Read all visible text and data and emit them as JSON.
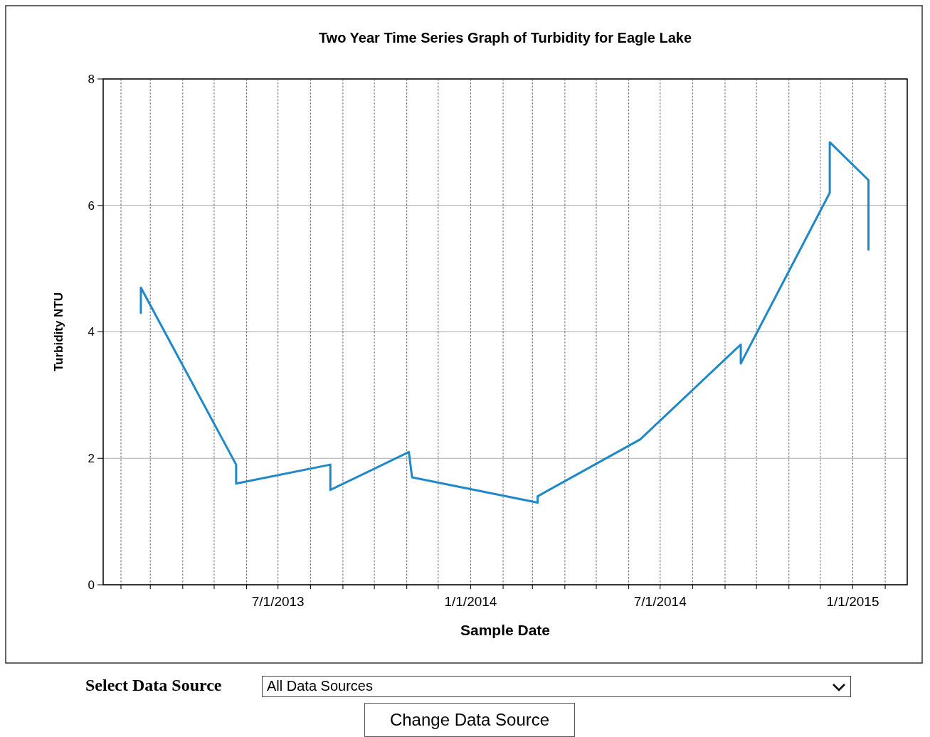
{
  "chart_data": {
    "type": "line",
    "title": "Two Year Time Series Graph of Turbidity for Eagle Lake",
    "xlabel": "Sample Date",
    "ylabel": "Turbidity NTU",
    "x": [
      "2013-02-20",
      "2013-02-20",
      "2013-05-22",
      "2013-05-22",
      "2013-08-20",
      "2013-08-20",
      "2013-11-03",
      "2013-11-06",
      "2014-03-06",
      "2014-03-06",
      "2014-06-12",
      "2014-09-16",
      "2014-09-16",
      "2014-12-10",
      "2014-12-10",
      "2015-01-16",
      "2015-01-16"
    ],
    "series": [
      {
        "color": "#1e88c8",
        "values": [
          4.3,
          4.7,
          1.9,
          1.6,
          1.9,
          1.5,
          2.1,
          1.7,
          1.3,
          1.4,
          2.3,
          3.8,
          3.5,
          6.2,
          7.0,
          6.4,
          5.3
        ]
      }
    ],
    "xlim": [
      "2013-01-15",
      "2015-02-22"
    ],
    "xticks": [
      {
        "value": "2013-02-01",
        "label": null
      },
      {
        "value": "2013-03-01",
        "label": null
      },
      {
        "value": "2013-04-01",
        "label": null
      },
      {
        "value": "2013-05-01",
        "label": null
      },
      {
        "value": "2013-06-01",
        "label": null
      },
      {
        "value": "2013-07-01",
        "label": "7/1/2013"
      },
      {
        "value": "2013-08-01",
        "label": null
      },
      {
        "value": "2013-09-01",
        "label": null
      },
      {
        "value": "2013-10-01",
        "label": null
      },
      {
        "value": "2013-11-01",
        "label": null
      },
      {
        "value": "2013-12-01",
        "label": null
      },
      {
        "value": "2014-01-01",
        "label": "1/1/2014"
      },
      {
        "value": "2014-02-01",
        "label": null
      },
      {
        "value": "2014-03-01",
        "label": null
      },
      {
        "value": "2014-04-01",
        "label": null
      },
      {
        "value": "2014-05-01",
        "label": null
      },
      {
        "value": "2014-06-01",
        "label": null
      },
      {
        "value": "2014-07-01",
        "label": "7/1/2014"
      },
      {
        "value": "2014-08-01",
        "label": null
      },
      {
        "value": "2014-09-01",
        "label": null
      },
      {
        "value": "2014-10-01",
        "label": null
      },
      {
        "value": "2014-11-01",
        "label": null
      },
      {
        "value": "2014-12-01",
        "label": null
      },
      {
        "value": "2015-01-01",
        "label": "1/1/2015"
      },
      {
        "value": "2015-02-01",
        "label": null
      }
    ],
    "ylim": [
      0,
      8
    ],
    "yticks": [
      0,
      2,
      4,
      6,
      8
    ],
    "grid": true,
    "line_style": "solid",
    "marker": "none",
    "annotations": [
      "Select Data Source",
      "All Data Sources",
      "Change Data Source"
    ]
  }
}
